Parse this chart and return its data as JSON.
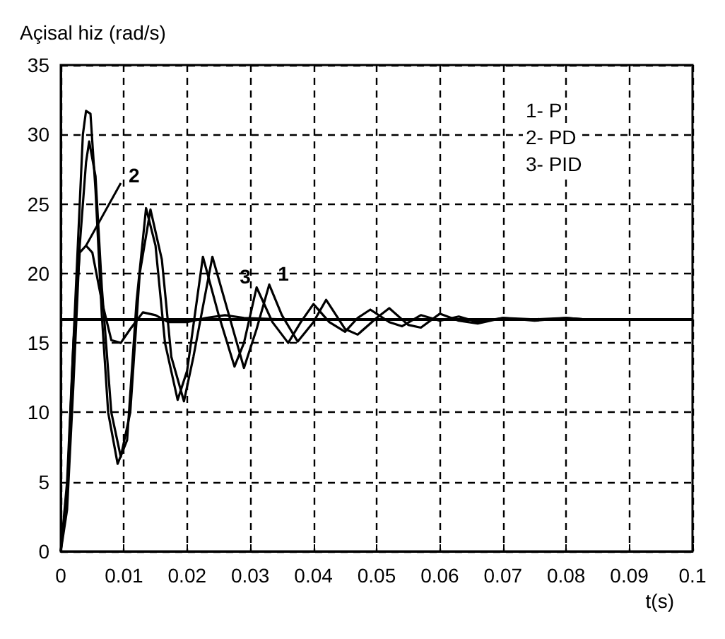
{
  "chart_data": {
    "type": "line",
    "ylabel": "Açisal hiz (rad/s)",
    "xlabel": "t(s)",
    "xlim": [
      0,
      0.1
    ],
    "xticks": [
      0,
      0.01,
      0.02,
      0.03,
      0.04,
      0.05,
      0.06,
      0.07,
      0.08,
      0.09,
      0.1
    ],
    "ylim": [
      0,
      35
    ],
    "yticks": [
      0,
      5,
      10,
      15,
      20,
      25,
      30,
      35
    ],
    "grid": true,
    "legend": false,
    "marker": "none",
    "line_style": "solid",
    "series": [
      {
        "name": "1",
        "color": "#000000",
        "x": [
          0,
          0.001,
          0.002,
          0.003,
          0.004,
          0.0045,
          0.0055,
          0.0065,
          0.008,
          0.0095,
          0.011,
          0.0125,
          0.0142,
          0.016,
          0.0175,
          0.0195,
          0.021,
          0.024,
          0.026,
          0.029,
          0.031,
          0.033,
          0.035,
          0.0375,
          0.04,
          0.042,
          0.045,
          0.047,
          0.05,
          0.052,
          0.055,
          0.057,
          0.06,
          0.063,
          0.066,
          0.07,
          0.075,
          0.08,
          0.083
        ],
        "values": [
          0,
          3,
          12,
          22,
          28,
          29.5,
          27,
          19,
          10,
          6.8,
          10,
          20,
          24.6,
          21,
          14,
          10.8,
          14,
          21.2,
          18,
          13.2,
          16,
          19.2,
          17,
          15.1,
          16.5,
          18.1,
          16,
          15.6,
          16.8,
          17.5,
          16.3,
          16.1,
          17.1,
          16.6,
          16.4,
          16.8,
          16.6,
          16.8,
          16.7
        ]
      },
      {
        "name": "2",
        "color": "#000000",
        "x": [
          0,
          0.001,
          0.002,
          0.003,
          0.004,
          0.005,
          0.0065,
          0.008,
          0.0095,
          0.011,
          0.013,
          0.015,
          0.017,
          0.02,
          0.023,
          0.026,
          0.029,
          0.035,
          0.045,
          0.06,
          0.083
        ],
        "values": [
          0,
          5,
          15,
          21.5,
          22,
          21.5,
          18,
          15.2,
          15,
          16,
          17.2,
          17,
          16.5,
          16.5,
          16.8,
          17,
          16.8,
          16.7,
          16.7,
          16.7,
          16.7
        ]
      },
      {
        "name": "3",
        "color": "#000000",
        "x": [
          0,
          0.001,
          0.002,
          0.003,
          0.0035,
          0.004,
          0.0047,
          0.0055,
          0.0065,
          0.0075,
          0.009,
          0.0105,
          0.012,
          0.0135,
          0.015,
          0.0165,
          0.0185,
          0.02,
          0.0225,
          0.025,
          0.0275,
          0.029,
          0.031,
          0.0335,
          0.036,
          0.038,
          0.04,
          0.0425,
          0.045,
          0.047,
          0.049,
          0.052,
          0.054,
          0.057,
          0.06,
          0.063,
          0.066,
          0.07,
          0.075,
          0.08,
          0.083
        ],
        "values": [
          0,
          4,
          15,
          25,
          30,
          31.7,
          31.5,
          26,
          17,
          10,
          6.3,
          8,
          18,
          24.7,
          22,
          15,
          10.9,
          13,
          21.2,
          17,
          13.3,
          15,
          19,
          16.5,
          15,
          16.5,
          17.8,
          16.5,
          15.8,
          16.8,
          17.4,
          16.5,
          16.2,
          17,
          16.6,
          16.9,
          16.5,
          16.8,
          16.7,
          16.8,
          16.7
        ]
      }
    ],
    "ref_lines": [
      {
        "axis": "y",
        "value": 16.7,
        "color": "#000000",
        "line_style": "solid"
      }
    ],
    "annotations": [
      "1- P",
      "2- PD",
      "3- PID"
    ]
  }
}
